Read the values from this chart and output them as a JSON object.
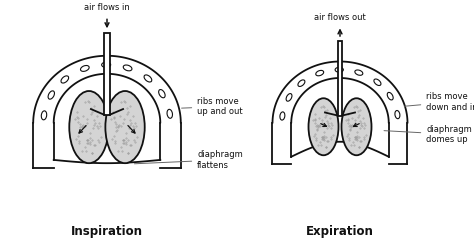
{
  "bg_color": "#ffffff",
  "fig_size": [
    4.74,
    2.44
  ],
  "dpi": 100,
  "inspiration": {
    "title": "Inspiration",
    "air_label": "air flows in",
    "rib_label": "ribs move\nup and out",
    "diaphragm_label": "diaphragm\nflattens",
    "diaphragm_flat": true
  },
  "expiration": {
    "title": "Expiration",
    "air_label": "air flows out",
    "rib_label": "ribs move\ndown and in",
    "diaphragm_label": "diaphragm\ndomes up",
    "diaphragm_flat": false
  },
  "outline_color": "#111111",
  "lung_fill": "#d4d4d4",
  "rib_fill": "#ffffff",
  "text_color": "#111111",
  "title_fontsize": 8.5,
  "label_fontsize": 6.0
}
